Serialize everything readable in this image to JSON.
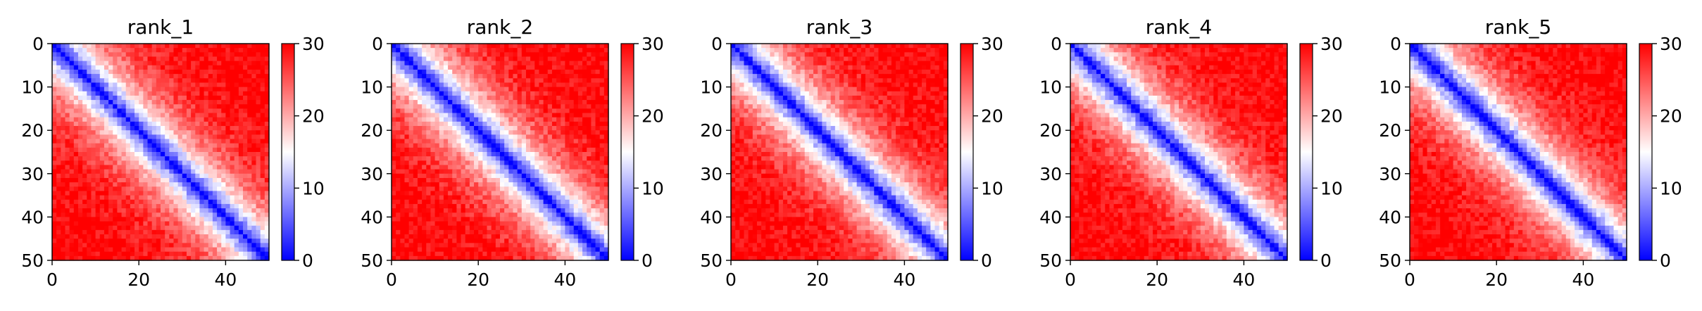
{
  "chart_data": [
    {
      "type": "heatmap",
      "title": "rank_1",
      "xlim": [
        0,
        50
      ],
      "ylim": [
        50,
        0
      ],
      "x_ticks": [
        "0",
        "20",
        "40"
      ],
      "y_ticks": [
        "0",
        "10",
        "20",
        "30",
        "40",
        "50"
      ],
      "colorbar": {
        "ticks": [
          "0",
          "10",
          "20",
          "30"
        ],
        "range": [
          0,
          30
        ]
      },
      "matrix_size": 50,
      "diagonal_band_width": 8,
      "noise_seed": 11
    },
    {
      "type": "heatmap",
      "title": "rank_2",
      "xlim": [
        0,
        50
      ],
      "ylim": [
        50,
        0
      ],
      "x_ticks": [
        "0",
        "20",
        "40"
      ],
      "y_ticks": [
        "0",
        "10",
        "20",
        "30",
        "40",
        "50"
      ],
      "colorbar": {
        "ticks": [
          "0",
          "10",
          "20",
          "30"
        ],
        "range": [
          0,
          30
        ]
      },
      "matrix_size": 50,
      "diagonal_band_width": 8,
      "noise_seed": 23
    },
    {
      "type": "heatmap",
      "title": "rank_3",
      "xlim": [
        0,
        50
      ],
      "ylim": [
        50,
        0
      ],
      "x_ticks": [
        "0",
        "20",
        "40"
      ],
      "y_ticks": [
        "0",
        "10",
        "20",
        "30",
        "40",
        "50"
      ],
      "colorbar": {
        "ticks": [
          "0",
          "10",
          "20",
          "30"
        ],
        "range": [
          0,
          30
        ]
      },
      "matrix_size": 50,
      "diagonal_band_width": 8,
      "noise_seed": 37
    },
    {
      "type": "heatmap",
      "title": "rank_4",
      "xlim": [
        0,
        50
      ],
      "ylim": [
        50,
        0
      ],
      "x_ticks": [
        "0",
        "20",
        "40"
      ],
      "y_ticks": [
        "0",
        "10",
        "20",
        "30",
        "40",
        "50"
      ],
      "colorbar": {
        "ticks": [
          "0",
          "10",
          "20",
          "30"
        ],
        "range": [
          0,
          30
        ]
      },
      "matrix_size": 50,
      "diagonal_band_width": 8,
      "noise_seed": 41
    },
    {
      "type": "heatmap",
      "title": "rank_5",
      "xlim": [
        0,
        50
      ],
      "ylim": [
        50,
        0
      ],
      "x_ticks": [
        "0",
        "20",
        "40"
      ],
      "y_ticks": [
        "0",
        "10",
        "20",
        "30",
        "40",
        "50"
      ],
      "colorbar": {
        "ticks": [
          "0",
          "10",
          "20",
          "30"
        ],
        "range": [
          0,
          30
        ]
      },
      "matrix_size": 50,
      "diagonal_band_width": 8,
      "noise_seed": 53
    }
  ],
  "colormap": {
    "low": "#0000ff",
    "mid": "#ffffff",
    "high": "#ff0000"
  }
}
